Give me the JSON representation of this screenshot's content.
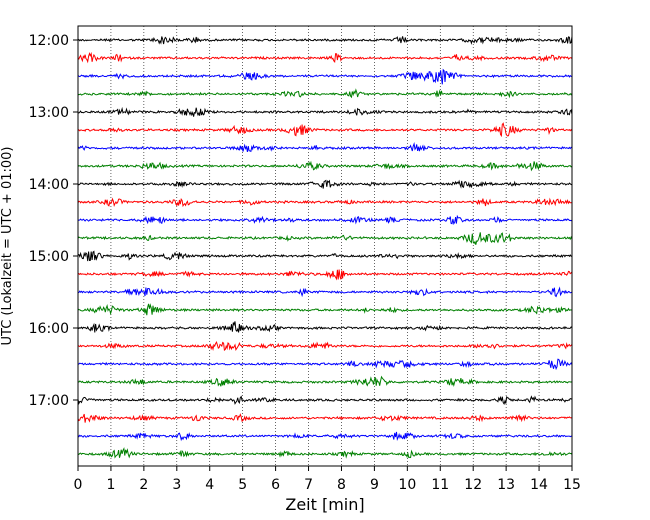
{
  "chart_data": {
    "type": "line",
    "title": "",
    "xlabel": "Zeit  [min]",
    "ylabel": "UTC (Lokalzeit = UTC + 01:00)",
    "xlim": [
      0,
      15
    ],
    "x_ticks": [
      "0",
      "1",
      "2",
      "3",
      "4",
      "5",
      "6",
      "7",
      "8",
      "9",
      "10",
      "11",
      "12",
      "13",
      "14",
      "15"
    ],
    "y_ticks": [
      {
        "label": "12:00",
        "row": 0
      },
      {
        "label": "13:00",
        "row": 4
      },
      {
        "label": "14:00",
        "row": 8
      },
      {
        "label": "15:00",
        "row": 12
      },
      {
        "label": "16:00",
        "row": 16
      },
      {
        "label": "17:00",
        "row": 20
      }
    ],
    "grid": "vertical-dotted",
    "row_interval_minutes": 15,
    "row_count": 24,
    "row_colors": [
      "#000000",
      "#ff0000",
      "#0000ff",
      "#008000"
    ],
    "series": [
      {
        "start": "12:00",
        "color": "#000000"
      },
      {
        "start": "12:15",
        "color": "#ff0000"
      },
      {
        "start": "12:30",
        "color": "#0000ff"
      },
      {
        "start": "12:45",
        "color": "#008000"
      },
      {
        "start": "13:00",
        "color": "#000000"
      },
      {
        "start": "13:15",
        "color": "#ff0000"
      },
      {
        "start": "13:30",
        "color": "#0000ff"
      },
      {
        "start": "13:45",
        "color": "#008000"
      },
      {
        "start": "14:00",
        "color": "#000000"
      },
      {
        "start": "14:15",
        "color": "#ff0000"
      },
      {
        "start": "14:30",
        "color": "#0000ff"
      },
      {
        "start": "14:45",
        "color": "#008000"
      },
      {
        "start": "15:00",
        "color": "#000000"
      },
      {
        "start": "15:15",
        "color": "#ff0000"
      },
      {
        "start": "15:30",
        "color": "#0000ff"
      },
      {
        "start": "15:45",
        "color": "#008000"
      },
      {
        "start": "16:00",
        "color": "#000000"
      },
      {
        "start": "16:15",
        "color": "#ff0000"
      },
      {
        "start": "16:30",
        "color": "#0000ff"
      },
      {
        "start": "16:45",
        "color": "#008000"
      },
      {
        "start": "17:00",
        "color": "#000000"
      },
      {
        "start": "17:15",
        "color": "#ff0000"
      },
      {
        "start": "17:30",
        "color": "#0000ff"
      },
      {
        "start": "17:45",
        "color": "#008000"
      }
    ]
  }
}
